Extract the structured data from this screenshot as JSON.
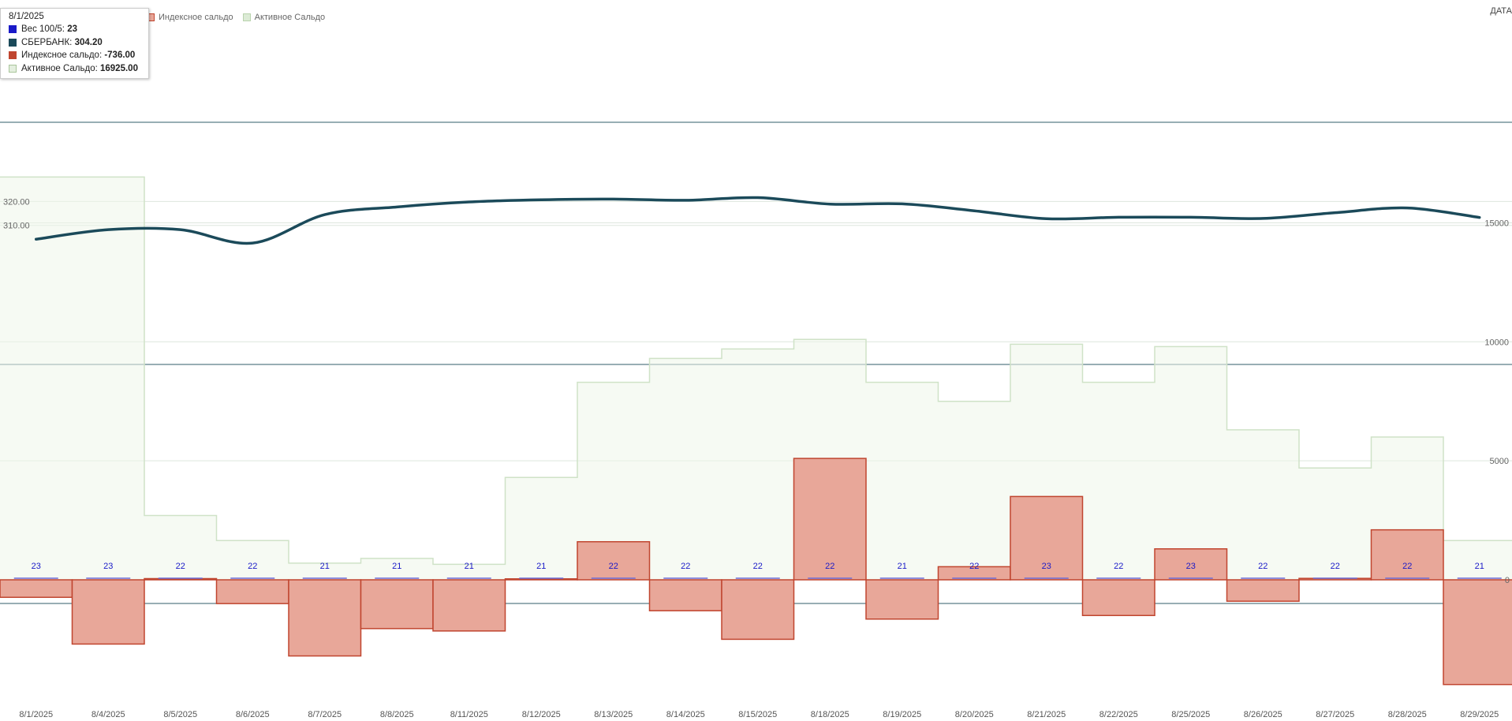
{
  "tooltip": {
    "date": "8/1/2025",
    "rows": [
      {
        "label": "Вес 100/5",
        "value": "23",
        "color": "#1a1ac8"
      },
      {
        "label": "СБЕРБАНК",
        "value": "304.20",
        "color": "#1b4a5a"
      },
      {
        "label": "Индексное сальдо",
        "value": "-736.00",
        "color": "#c0452f"
      },
      {
        "label": "Активное Сальдо",
        "value": "16925.00",
        "color": "#e4efdf"
      }
    ]
  },
  "legend": {
    "index_label": "Индексное сальдо",
    "active_label": "Активное Сальдо",
    "index_color": "#e8a799",
    "active_color": "#dcebd6"
  },
  "date_corner": "ДАТА",
  "chart_data": {
    "type": "bar",
    "categories": [
      "8/1/2025",
      "8/4/2025",
      "8/5/2025",
      "8/6/2025",
      "8/7/2025",
      "8/8/2025",
      "8/11/2025",
      "8/12/2025",
      "8/13/2025",
      "8/14/2025",
      "8/15/2025",
      "8/18/2025",
      "8/19/2025",
      "8/20/2025",
      "8/21/2025",
      "8/22/2025",
      "8/25/2025",
      "8/26/2025",
      "8/27/2025",
      "8/28/2025",
      "8/29/2025"
    ],
    "series": [
      {
        "name": "Вес 100/5",
        "type": "label",
        "values": [
          23,
          23,
          22,
          22,
          21,
          21,
          21,
          21,
          22,
          22,
          22,
          22,
          21,
          22,
          23,
          22,
          23,
          22,
          22,
          22,
          21
        ]
      },
      {
        "name": "СБЕРБАНК",
        "type": "line",
        "axis": "left",
        "values": [
          304.2,
          308.2,
          308.2,
          302.6,
          314.5,
          317.7,
          319.8,
          320.7,
          321.0,
          320.5,
          321.6,
          318.9,
          319.0,
          316.1,
          312.8,
          313.4,
          313.4,
          312.9,
          315.3,
          317.3,
          313.3
        ]
      },
      {
        "name": "Индексное сальдо",
        "type": "step-area",
        "axis": "right",
        "values": [
          -736,
          -2700,
          50,
          -1000,
          -3200,
          -2050,
          -2150,
          40,
          1600,
          -1300,
          -2500,
          5100,
          -1650,
          550,
          3500,
          -1500,
          1300,
          -900,
          60,
          2100,
          -4400
        ]
      },
      {
        "name": "Активное Сальдо",
        "type": "step-area",
        "axis": "right",
        "values": [
          16925,
          16925,
          2700,
          1650,
          700,
          900,
          650,
          4300,
          8300,
          9300,
          9700,
          10100,
          8300,
          7500,
          9900,
          8300,
          9800,
          6300,
          4700,
          6000,
          1650
        ]
      }
    ],
    "left_axis": {
      "ticks": [
        "310.00",
        "320.00"
      ],
      "range": [
        300,
        330
      ]
    },
    "right_axis": {
      "ticks": [
        "0",
        "5000",
        "10000",
        "15000"
      ],
      "range": [
        -4400,
        20000
      ]
    },
    "grid": true
  }
}
